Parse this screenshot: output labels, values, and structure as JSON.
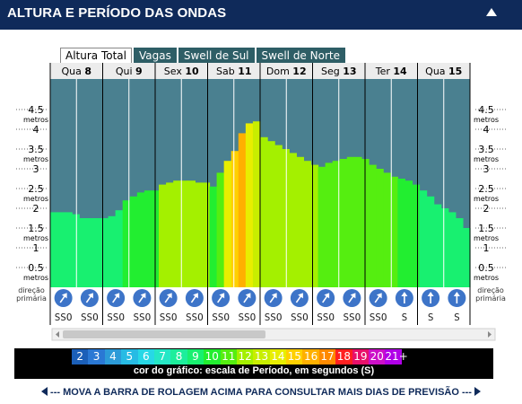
{
  "header": {
    "title": "ALTURA E PERÍODO DAS ONDAS"
  },
  "tabs": [
    {
      "label": "Altura Total",
      "active": true
    },
    {
      "label": "Vagas",
      "active": false
    },
    {
      "label": "Swell de Sul",
      "active": false
    },
    {
      "label": "Swell de Norte",
      "active": false
    }
  ],
  "chart_data": {
    "type": "bar",
    "ylabel": "metros",
    "ylim": [
      0,
      5
    ],
    "y_ticks": [
      "0.5",
      "1",
      "1.5",
      "2",
      "2.5",
      "3",
      "3.5",
      "4",
      "4.5"
    ],
    "y_unit": "metros",
    "days": [
      {
        "name": "Qua",
        "num": "8"
      },
      {
        "name": "Qui",
        "num": "9"
      },
      {
        "name": "Sex",
        "num": "10"
      },
      {
        "name": "Sab",
        "num": "11"
      },
      {
        "name": "Dom",
        "num": "12"
      },
      {
        "name": "Seg",
        "num": "13"
      },
      {
        "name": "Ter",
        "num": "14"
      },
      {
        "name": "Qua",
        "num": "15"
      }
    ],
    "heights": [
      1.9,
      1.9,
      1.9,
      1.85,
      1.75,
      1.75,
      1.75,
      1.75,
      1.8,
      1.95,
      2.2,
      2.3,
      2.4,
      2.45,
      2.45,
      2.6,
      2.65,
      2.7,
      2.7,
      2.7,
      2.65,
      2.65,
      2.55,
      2.9,
      3.2,
      3.45,
      3.9,
      4.15,
      4.2,
      3.8,
      3.7,
      3.6,
      3.5,
      3.4,
      3.3,
      3.2,
      3.1,
      3.05,
      3.15,
      3.2,
      3.25,
      3.3,
      3.3,
      3.25,
      3.1,
      3.0,
      2.9,
      2.8,
      2.75,
      2.7,
      2.6,
      2.45,
      2.3,
      2.1,
      2.0,
      1.9,
      1.75,
      1.5
    ],
    "periods": [
      9,
      9,
      9,
      9,
      9,
      9,
      9,
      9,
      9,
      9,
      10,
      10,
      10,
      10,
      10,
      12,
      12,
      12,
      12,
      12,
      12,
      12,
      10,
      11,
      14,
      15,
      16,
      14,
      13,
      12,
      12,
      12,
      12,
      12,
      12,
      12,
      12,
      11,
      11,
      11,
      11,
      11,
      11,
      11,
      11,
      11,
      11,
      11,
      10,
      10,
      10,
      9,
      9,
      9,
      9,
      9,
      9,
      9
    ],
    "direction_label": "direção primária",
    "directions": [
      "SSO",
      "SSO",
      "SSO",
      "SSO",
      "SSO",
      "SSO",
      "SSO",
      "SSO",
      "SSO",
      "SSO",
      "SSO",
      "SSO",
      "SSO",
      "S",
      "S",
      "S"
    ],
    "arrow_angles": [
      35,
      35,
      35,
      35,
      35,
      35,
      35,
      35,
      35,
      35,
      35,
      35,
      35,
      0,
      0,
      0
    ],
    "period_scale": {
      "caption": "cor do gráfico: escala de Período, em segundos (S)",
      "values": [
        "2",
        "3",
        "4",
        "5",
        "6",
        "7",
        "8",
        "9",
        "10",
        "11",
        "12",
        "13",
        "14",
        "15",
        "16",
        "17",
        "18",
        "19",
        "20",
        "21+"
      ],
      "colors": [
        "#1b5fb8",
        "#2a78d4",
        "#2c9bd8",
        "#27bbe4",
        "#27d8e6",
        "#25e7c6",
        "#1cee9c",
        "#18f070",
        "#22ee30",
        "#55ee10",
        "#a4f000",
        "#c8ee00",
        "#e8ee00",
        "#ffd000",
        "#ffb000",
        "#ff8a00",
        "#ff2020",
        "#e8106a",
        "#cc10c8",
        "#b000e8"
      ]
    }
  },
  "footer": {
    "text": "MOVA A BARRA DE ROLAGEM ACIMA PARA CONSULTAR MAIS DIAS DE PREVISÃO"
  }
}
